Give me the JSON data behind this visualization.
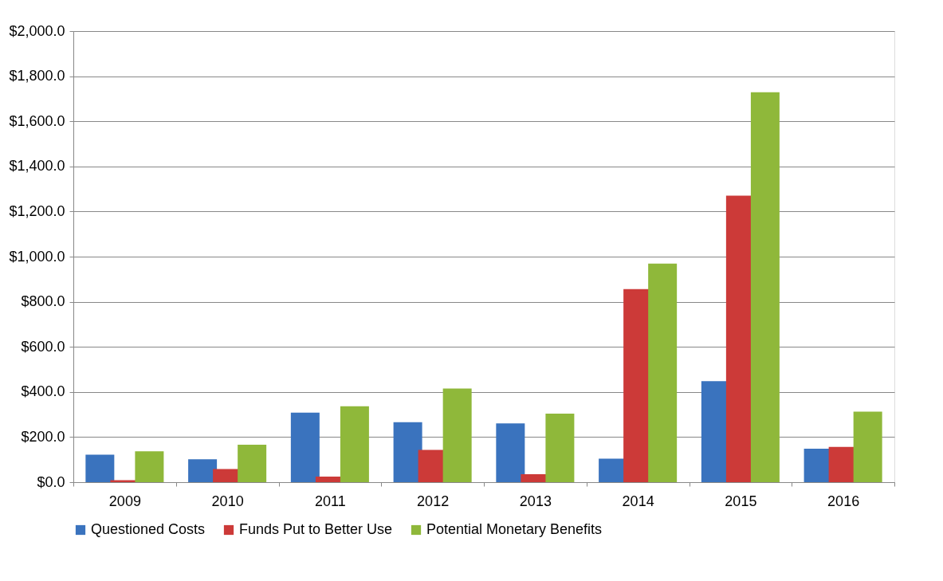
{
  "chart_data": {
    "type": "bar",
    "categories": [
      "2009",
      "2010",
      "2011",
      "2012",
      "2013",
      "2014",
      "2015",
      "2016"
    ],
    "series": [
      {
        "name": "Questioned Costs",
        "color": "#3a73be",
        "values": [
          122,
          102,
          308,
          266,
          261,
          104,
          448,
          148
        ]
      },
      {
        "name": "Funds Put to Better Use",
        "color": "#cc3a38",
        "values": [
          9,
          58,
          25,
          143,
          35,
          856,
          1270,
          156
        ]
      },
      {
        "name": "Potential Monetary Benefits",
        "color": "#8fb83a",
        "values": [
          137,
          166,
          337,
          415,
          304,
          969,
          1729,
          313
        ]
      }
    ],
    "ylim": [
      0,
      2000
    ],
    "yticks": [
      {
        "value": 0,
        "label": "$0.0"
      },
      {
        "value": 200,
        "label": "$200.0"
      },
      {
        "value": 400,
        "label": "$400.0"
      },
      {
        "value": 600,
        "label": "$600.0"
      },
      {
        "value": 800,
        "label": "$800.0"
      },
      {
        "value": 1000,
        "label": "$1,000.0"
      },
      {
        "value": 1200,
        "label": "$1,200.0"
      },
      {
        "value": 1400,
        "label": "$1,400.0"
      },
      {
        "value": 1600,
        "label": "$1,600.0"
      },
      {
        "value": 1800,
        "label": "$1,800.0"
      },
      {
        "value": 2000,
        "label": "$2,000.0"
      }
    ],
    "grid": "y",
    "legend": "bottom"
  }
}
